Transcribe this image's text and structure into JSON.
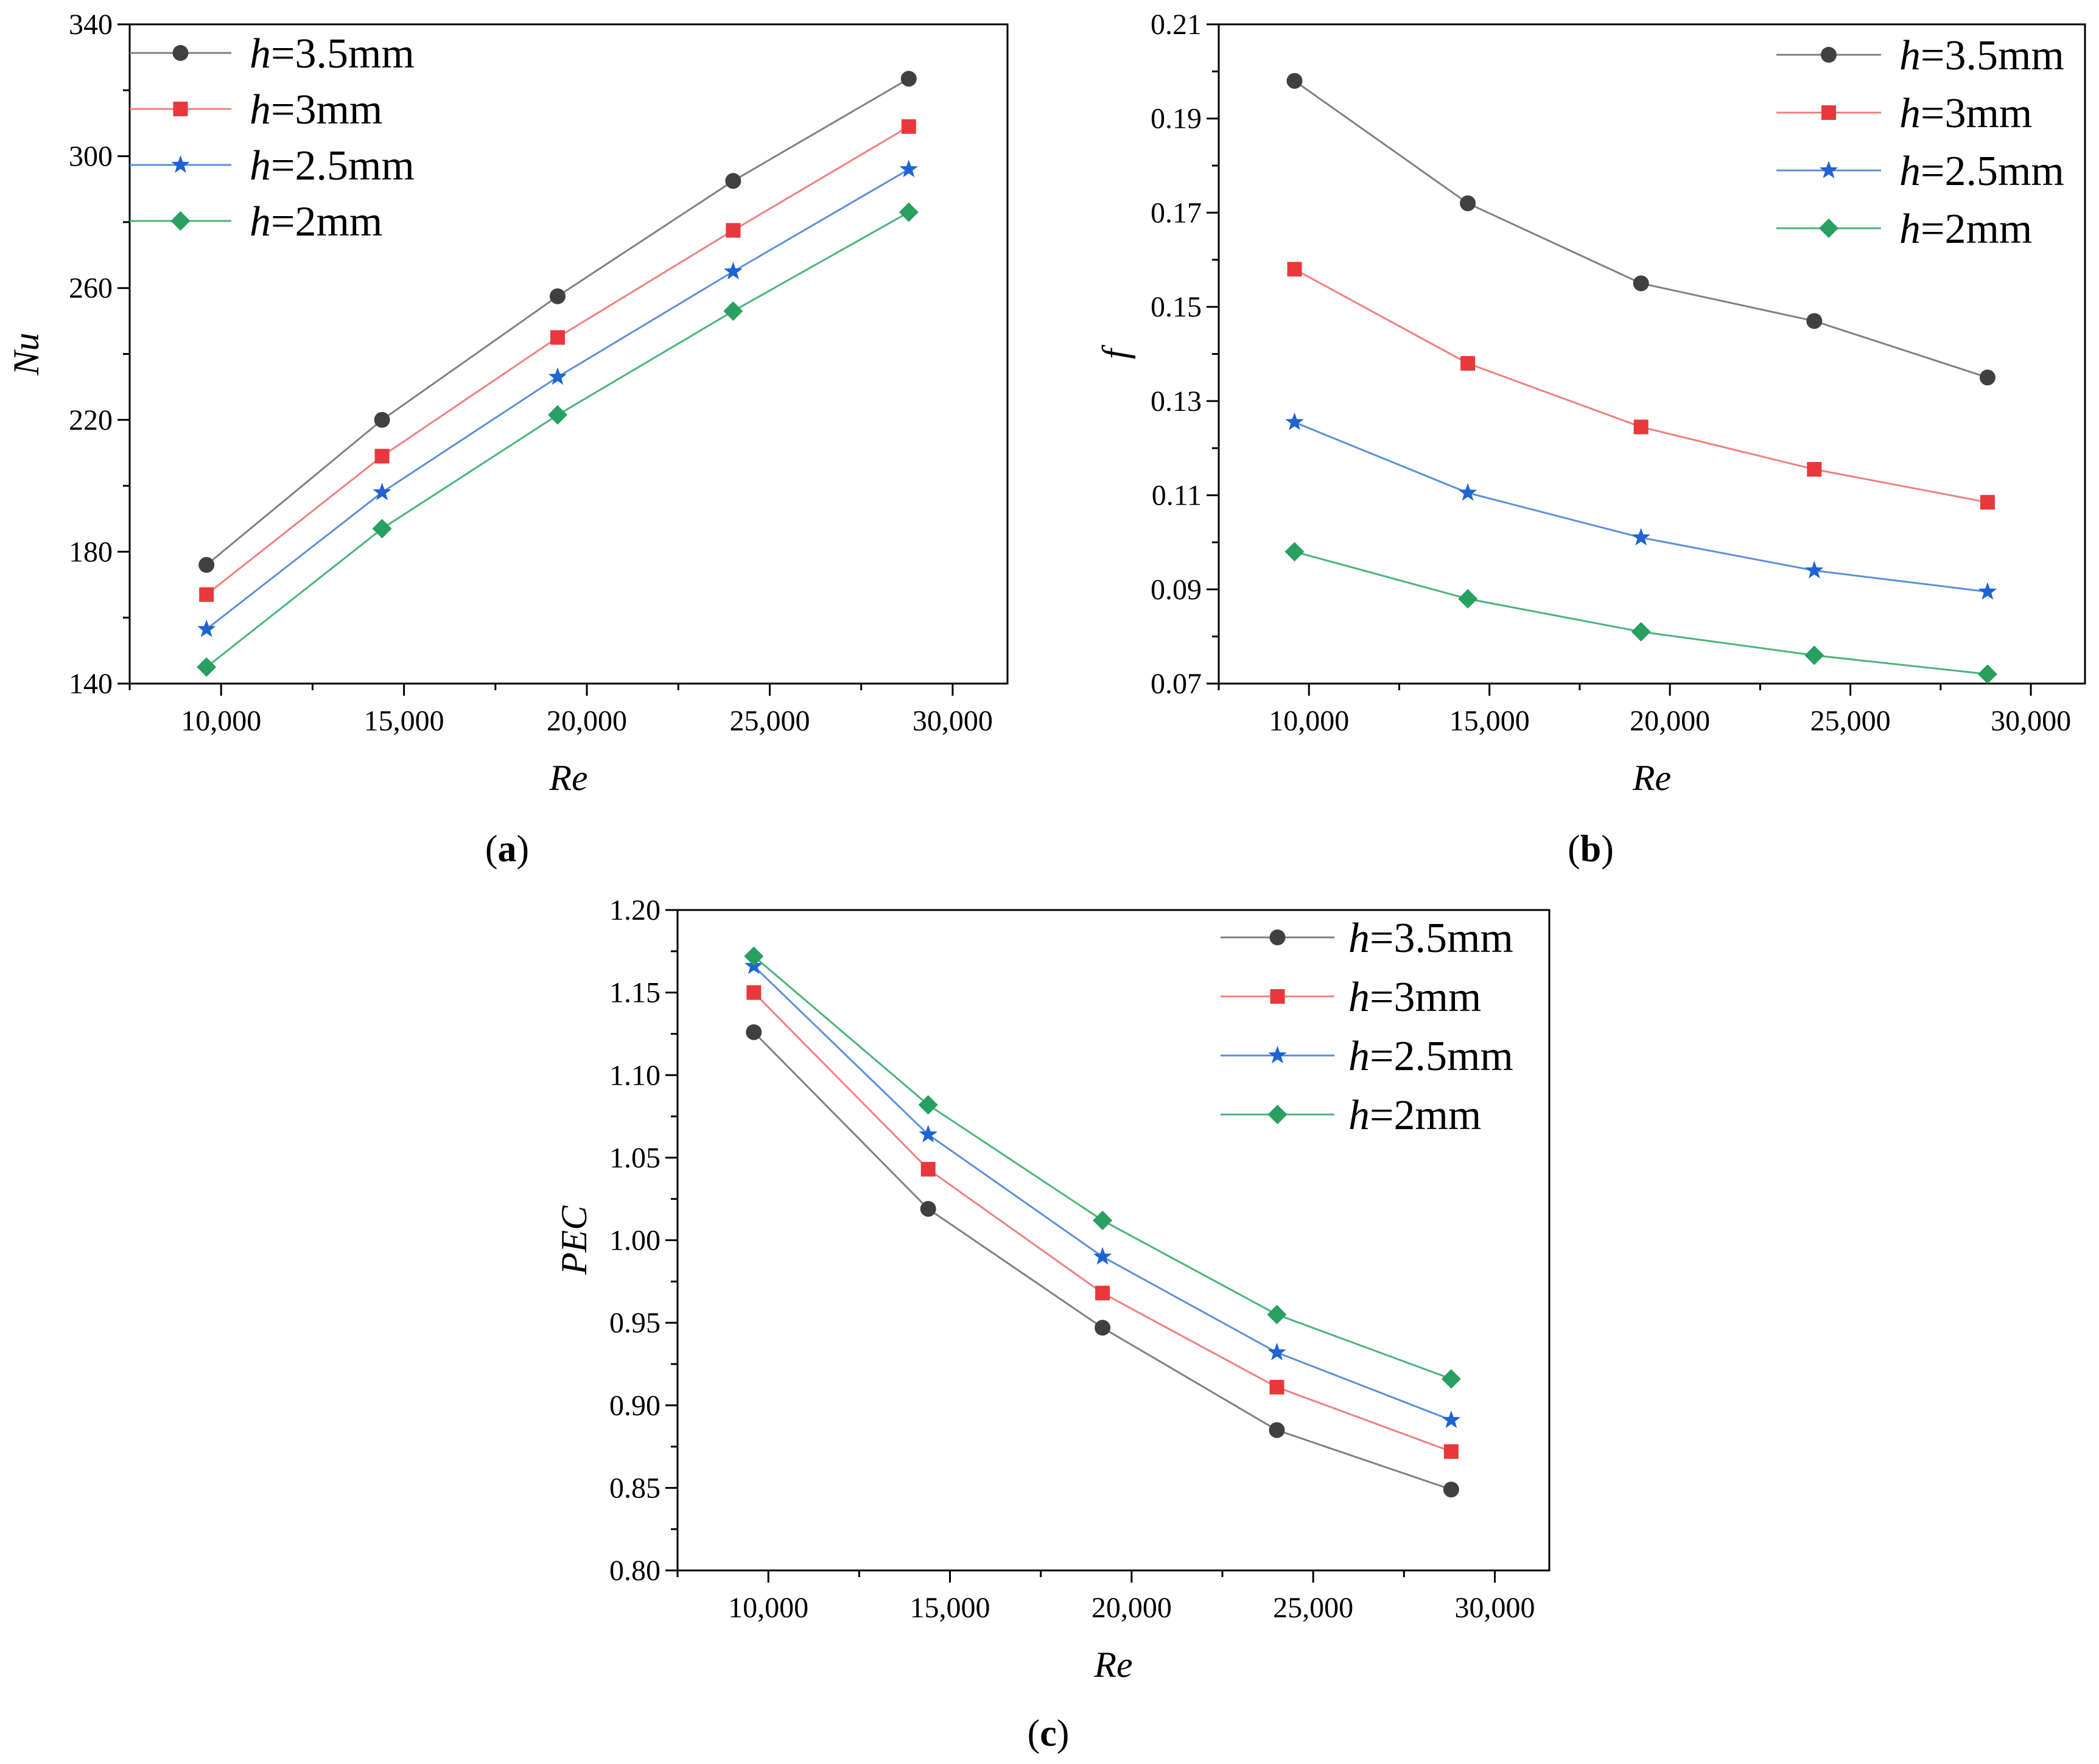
{
  "chart_data": [
    {
      "type": "line",
      "panel_label": "a",
      "xlabel": "Re",
      "ylabel": "Nu",
      "xlim": [
        7500,
        31500
      ],
      "ylim": [
        140,
        340
      ],
      "xticks": [
        10000,
        15000,
        20000,
        25000,
        30000
      ],
      "xtick_labels": [
        "10,000",
        "15,000",
        "20,000",
        "25,000",
        "30,000"
      ],
      "yticks": [
        140,
        180,
        220,
        260,
        300,
        340
      ],
      "ytick_labels": [
        "140",
        "180",
        "220",
        "260",
        "300",
        "340"
      ],
      "legend_position": "top-left",
      "x": [
        9600,
        14400,
        19200,
        24000,
        28800
      ],
      "series": [
        {
          "name": "h=3.5mm",
          "name_italic": "h",
          "name_rest": "=3.5mm",
          "color": "#808080",
          "marker_color": "#404040",
          "marker": "circle",
          "values": [
            176,
            220,
            257.5,
            292.5,
            323.5
          ]
        },
        {
          "name": "h=3mm",
          "name_italic": "h",
          "name_rest": "=3mm",
          "color": "#f08080",
          "marker_color": "#e8383c",
          "marker": "square",
          "values": [
            167,
            209,
            245,
            277.5,
            309
          ]
        },
        {
          "name": "h=2.5mm",
          "name_italic": "h",
          "name_rest": "=2.5mm",
          "color": "#5b8fd9",
          "marker_color": "#1e64d2",
          "marker": "star",
          "values": [
            156.5,
            198,
            233,
            265,
            296
          ]
        },
        {
          "name": "h=2mm",
          "name_italic": "h",
          "name_rest": "=2mm",
          "color": "#4ab47a",
          "marker_color": "#27a060",
          "marker": "diamond",
          "values": [
            145,
            187,
            221.5,
            253,
            283
          ]
        }
      ]
    },
    {
      "type": "line",
      "panel_label": "b",
      "xlabel": "Re",
      "ylabel": "f",
      "xlim": [
        7500,
        31500
      ],
      "ylim": [
        0.07,
        0.21
      ],
      "xticks": [
        10000,
        15000,
        20000,
        25000,
        30000
      ],
      "xtick_labels": [
        "10,000",
        "15,000",
        "20,000",
        "25,000",
        "30,000"
      ],
      "yticks": [
        0.07,
        0.09,
        0.11,
        0.13,
        0.15,
        0.17,
        0.19,
        0.21
      ],
      "ytick_labels": [
        "0.07",
        "0.09",
        "0.11",
        "0.13",
        "0.15",
        "0.17",
        "0.19",
        "0.21"
      ],
      "legend_position": "top-right",
      "x": [
        9600,
        14400,
        19200,
        24000,
        28800
      ],
      "series": [
        {
          "name": "h=3.5mm",
          "name_italic": "h",
          "name_rest": "=3.5mm",
          "color": "#808080",
          "marker_color": "#404040",
          "marker": "circle",
          "values": [
            0.198,
            0.172,
            0.155,
            0.147,
            0.135
          ]
        },
        {
          "name": "h=3mm",
          "name_italic": "h",
          "name_rest": "=3mm",
          "color": "#f08080",
          "marker_color": "#e8383c",
          "marker": "square",
          "values": [
            0.158,
            0.138,
            0.1245,
            0.1155,
            0.1085
          ]
        },
        {
          "name": "h=2.5mm",
          "name_italic": "h",
          "name_rest": "=2.5mm",
          "color": "#5b8fd9",
          "marker_color": "#1e64d2",
          "marker": "star",
          "values": [
            0.1255,
            0.1105,
            0.101,
            0.094,
            0.0895
          ]
        },
        {
          "name": "h=2mm",
          "name_italic": "h",
          "name_rest": "=2mm",
          "color": "#4ab47a",
          "marker_color": "#27a060",
          "marker": "diamond",
          "values": [
            0.098,
            0.088,
            0.081,
            0.076,
            0.072
          ]
        }
      ]
    },
    {
      "type": "line",
      "panel_label": "c",
      "xlabel": "Re",
      "ylabel": "PEC",
      "xlim": [
        7500,
        31500
      ],
      "ylim": [
        0.8,
        1.2
      ],
      "xticks": [
        10000,
        15000,
        20000,
        25000,
        30000
      ],
      "xtick_labels": [
        "10,000",
        "15,000",
        "20,000",
        "25,000",
        "30,000"
      ],
      "yticks": [
        0.8,
        0.85,
        0.9,
        0.95,
        1.0,
        1.05,
        1.1,
        1.15,
        1.2
      ],
      "ytick_labels": [
        "0.80",
        "0.85",
        "0.90",
        "0.95",
        "1.00",
        "1.05",
        "1.10",
        "1.15",
        "1.20"
      ],
      "legend_position": "top-right",
      "x": [
        9600,
        14400,
        19200,
        24000,
        28800
      ],
      "series": [
        {
          "name": "h=3.5mm",
          "name_italic": "h",
          "name_rest": "=3.5mm",
          "color": "#808080",
          "marker_color": "#404040",
          "marker": "circle",
          "values": [
            1.126,
            1.019,
            0.947,
            0.885,
            0.849
          ]
        },
        {
          "name": "h=3mm",
          "name_italic": "h",
          "name_rest": "=3mm",
          "color": "#f08080",
          "marker_color": "#e8383c",
          "marker": "square",
          "values": [
            1.15,
            1.043,
            0.968,
            0.911,
            0.872
          ]
        },
        {
          "name": "h=2.5mm",
          "name_italic": "h",
          "name_rest": "=2.5mm",
          "color": "#5b8fd9",
          "marker_color": "#1e64d2",
          "marker": "star",
          "values": [
            1.166,
            1.064,
            0.99,
            0.932,
            0.891
          ]
        },
        {
          "name": "h=2mm",
          "name_italic": "h",
          "name_rest": "=2mm",
          "color": "#4ab47a",
          "marker_color": "#27a060",
          "marker": "diamond",
          "values": [
            1.172,
            1.082,
            1.012,
            0.955,
            0.916
          ]
        }
      ]
    }
  ]
}
